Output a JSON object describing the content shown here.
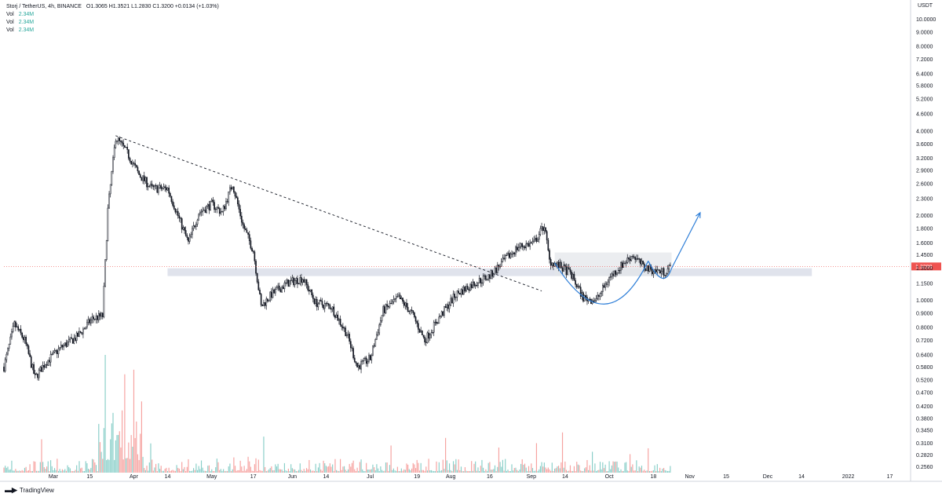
{
  "header": {
    "title": "Storj / TetherUS, 4h, BINANCE",
    "ohlc": "O1.3065  H1.3521  L1.2830  C1.3200  +0.0134 (+1.03%)",
    "indicators": [
      {
        "name": "Vol",
        "value": "2.34M"
      },
      {
        "name": "Vol",
        "value": "2.34M"
      },
      {
        "name": "Vol",
        "value": "2.34M"
      }
    ]
  },
  "currency_label": "USDT",
  "footer": {
    "brand": "TradingView"
  },
  "colors": {
    "up": "#26a69a",
    "down": "#ef5350",
    "candle": "#131722",
    "arrow": "#2f7fd8",
    "zone": "#d6dae6",
    "price_tag": "#ef5350"
  },
  "chart_data": {
    "type": "candlestick",
    "scale": "log",
    "ylim": [
      0.2439,
      11.4
    ],
    "y_ticks": [
      "10.0000",
      "9.0000",
      "8.0000",
      "7.2000",
      "6.4000",
      "5.8000",
      "5.2000",
      "4.6000",
      "4.0000",
      "3.6000",
      "3.2000",
      "2.9000",
      "2.6000",
      "2.3000",
      "2.0000",
      "1.8000",
      "1.6000",
      "1.4500",
      "1.3000",
      "1.1500",
      "1.0000",
      "0.9000",
      "0.8000",
      "0.7200",
      "0.6400",
      "0.5800",
      "0.5200",
      "0.4700",
      "0.4200",
      "0.3800",
      "0.3450",
      "0.3100",
      "0.2820",
      "0.2560"
    ],
    "x_ticks": [
      "Mar",
      "15",
      "Apr",
      "14",
      "May",
      "17",
      "Jun",
      "14",
      "Jul",
      "19",
      "Aug",
      "16",
      "Sep",
      "14",
      "Oct",
      "18",
      "Nov",
      "15",
      "Dec",
      "14",
      "2022",
      "17"
    ],
    "current_price": "1.3200",
    "price_path": [
      [
        "2021-02-10",
        0.58
      ],
      [
        "2021-02-14",
        0.82
      ],
      [
        "2021-02-18",
        0.72
      ],
      [
        "2021-02-22",
        0.53
      ],
      [
        "2021-02-26",
        0.6
      ],
      [
        "2021-03-04",
        0.68
      ],
      [
        "2021-03-10",
        0.74
      ],
      [
        "2021-03-16",
        0.86
      ],
      [
        "2021-03-20",
        0.88
      ],
      [
        "2021-03-22",
        2.1
      ],
      [
        "2021-03-25",
        3.8
      ],
      [
        "2021-03-29",
        3.4
      ],
      [
        "2021-04-03",
        2.8
      ],
      [
        "2021-04-08",
        2.5
      ],
      [
        "2021-04-14",
        2.5
      ],
      [
        "2021-04-18",
        2.0
      ],
      [
        "2021-04-22",
        1.6
      ],
      [
        "2021-04-26",
        2.05
      ],
      [
        "2021-05-01",
        2.2
      ],
      [
        "2021-05-05",
        2.05
      ],
      [
        "2021-05-09",
        2.6
      ],
      [
        "2021-05-13",
        1.85
      ],
      [
        "2021-05-17",
        1.5
      ],
      [
        "2021-05-20",
        0.95
      ],
      [
        "2021-05-24",
        1.05
      ],
      [
        "2021-05-30",
        1.15
      ],
      [
        "2021-06-05",
        1.2
      ],
      [
        "2021-06-10",
        0.98
      ],
      [
        "2021-06-16",
        0.95
      ],
      [
        "2021-06-22",
        0.76
      ],
      [
        "2021-06-26",
        0.58
      ],
      [
        "2021-07-01",
        0.62
      ],
      [
        "2021-07-06",
        0.92
      ],
      [
        "2021-07-12",
        1.02
      ],
      [
        "2021-07-17",
        0.9
      ],
      [
        "2021-07-22",
        0.72
      ],
      [
        "2021-07-28",
        0.88
      ],
      [
        "2021-08-03",
        1.05
      ],
      [
        "2021-08-10",
        1.15
      ],
      [
        "2021-08-16",
        1.22
      ],
      [
        "2021-08-22",
        1.4
      ],
      [
        "2021-08-27",
        1.55
      ],
      [
        "2021-09-02",
        1.6
      ],
      [
        "2021-09-06",
        1.85
      ],
      [
        "2021-09-08",
        1.38
      ],
      [
        "2021-09-12",
        1.32
      ],
      [
        "2021-09-16",
        1.25
      ],
      [
        "2021-09-21",
        1.02
      ],
      [
        "2021-09-26",
        1.0
      ],
      [
        "2021-10-01",
        1.2
      ],
      [
        "2021-10-06",
        1.34
      ],
      [
        "2021-10-10",
        1.45
      ],
      [
        "2021-10-14",
        1.32
      ],
      [
        "2021-10-18",
        1.28
      ],
      [
        "2021-10-22",
        1.26
      ],
      [
        "2021-10-25",
        1.32
      ]
    ],
    "annotations": {
      "support_zone": {
        "low": 1.22,
        "high": 1.3,
        "from": "2021-04-14",
        "to": "2021-12-18"
      },
      "resistance_box": {
        "low": 1.22,
        "high": 1.48,
        "from": "2021-09-10",
        "to": "2021-10-25"
      },
      "trendline": {
        "from": [
          "2021-03-25",
          3.85
        ],
        "to": [
          "2021-09-05",
          1.08
        ],
        "style": "dashed"
      },
      "cup_curve": {
        "from": [
          "2021-09-10",
          1.36
        ],
        "bottom": [
          "2021-09-30",
          0.97
        ],
        "to": [
          "2021-10-16",
          1.38
        ]
      },
      "handle_curve": {
        "from": [
          "2021-10-16",
          1.38
        ],
        "bottom": [
          "2021-10-22",
          1.2
        ],
        "to": [
          "2021-10-25",
          1.3
        ]
      },
      "arrow": {
        "from": [
          "2021-10-25",
          1.3
        ],
        "to": [
          "2021-11-05",
          2.05
        ]
      }
    }
  }
}
